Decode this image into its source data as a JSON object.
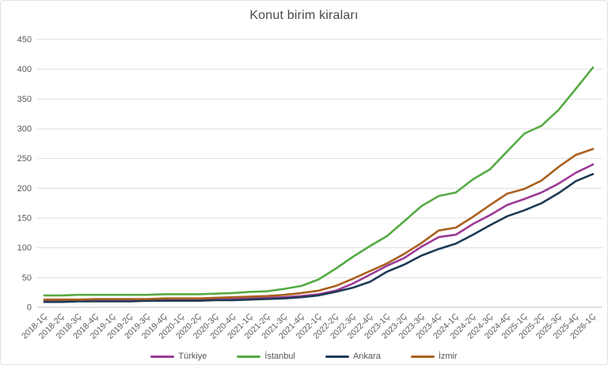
{
  "chart_data": {
    "type": "line",
    "title": "Konut birim kiraları",
    "xlabel": "",
    "ylabel": "",
    "ylim": [
      0,
      450
    ],
    "yticks": [
      0,
      50,
      100,
      150,
      200,
      250,
      300,
      350,
      400,
      450
    ],
    "grid": true,
    "legend_position": "bottom-center",
    "categories": [
      "2018-1Ç",
      "2018-2Ç",
      "2018-3Ç",
      "2018-4Ç",
      "2019-1Ç",
      "2019-2Ç",
      "2019-3Ç",
      "2019-4Ç",
      "2020-1Ç",
      "2020-2Ç",
      "2020-3Ç",
      "2020-4Ç",
      "2021-1Ç",
      "2021-2Ç",
      "2021-3Ç",
      "2021-4Ç",
      "2022-1Ç",
      "2022-2Ç",
      "2022-3Ç",
      "2022-4Ç",
      "2023-1Ç",
      "2023-2Ç",
      "2023-3Ç",
      "2023-4Ç",
      "2024-1Ç",
      "2024-2Ç",
      "2024-3Ç",
      "2024-4Ç",
      "2025-1Ç",
      "2025-2Ç",
      "2025-3Ç",
      "2025-4Ç",
      "2026-1Ç"
    ],
    "series": [
      {
        "name": "Türkiye",
        "color": "#9c3a96",
        "values": [
          11,
          11,
          11,
          12,
          12,
          12,
          12,
          13,
          13,
          13,
          14,
          14,
          15,
          16,
          17,
          19,
          22,
          28,
          40,
          55,
          70,
          83,
          102,
          118,
          122,
          140,
          155,
          172,
          182,
          193,
          208,
          226,
          240
        ]
      },
      {
        "name": "İstanbul",
        "color": "#56ab44",
        "values": [
          20,
          20,
          21,
          21,
          21,
          21,
          21,
          22,
          22,
          22,
          23,
          24,
          26,
          27,
          31,
          36,
          47,
          65,
          85,
          103,
          120,
          145,
          170,
          187,
          193,
          215,
          232,
          262,
          292,
          305,
          332,
          367,
          403
        ]
      },
      {
        "name": "Ankara",
        "color": "#1d3a55",
        "values": [
          9,
          9,
          10,
          10,
          10,
          10,
          11,
          11,
          11,
          11,
          12,
          12,
          13,
          14,
          15,
          17,
          20,
          26,
          33,
          43,
          60,
          72,
          87,
          98,
          107,
          122,
          138,
          153,
          163,
          175,
          192,
          212,
          224
        ]
      },
      {
        "name": "İzmir",
        "color": "#a9601e",
        "values": [
          13,
          13,
          13,
          14,
          14,
          14,
          14,
          15,
          15,
          15,
          16,
          17,
          18,
          19,
          21,
          24,
          28,
          36,
          48,
          61,
          74,
          90,
          108,
          129,
          134,
          152,
          172,
          191,
          199,
          213,
          236,
          256,
          266
        ]
      }
    ],
    "colors": {
      "gridline": "#dddddd",
      "axis_line": "#c0c0c0",
      "tick_label": "#595959",
      "title": "#4a4a4a"
    }
  }
}
